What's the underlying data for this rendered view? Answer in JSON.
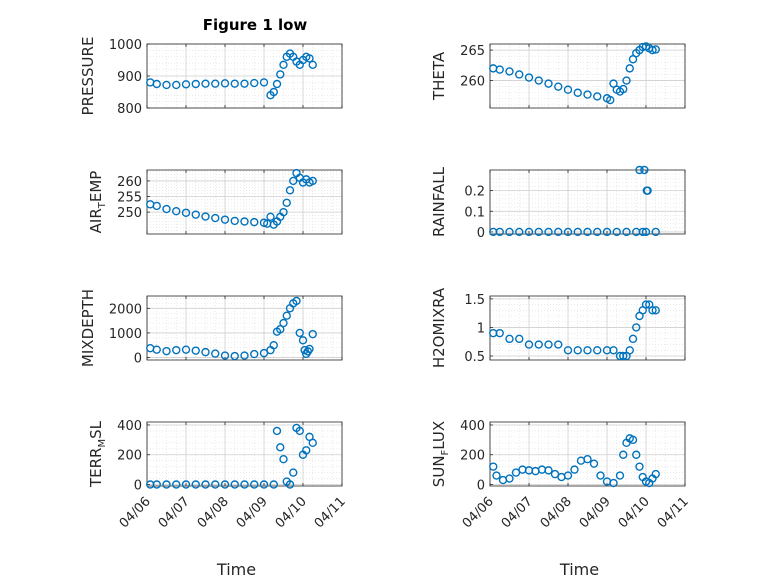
{
  "figure_title": "Figure 1 low",
  "colors": {
    "marker": "#0072BD",
    "axis": "#262626",
    "grid": "#dcdcdc"
  },
  "chart_data": [
    {
      "type": "scatter",
      "ylabel": "PRESSURE",
      "ylim": [
        800,
        1000
      ],
      "yticks": [
        "1000",
        "900",
        "800"
      ],
      "ytick_values": [
        1000,
        900,
        800
      ],
      "x": [
        "04/06 02:00",
        "04/06 06:00",
        "04/06 12:00",
        "04/06 18:00",
        "04/07 00:00",
        "04/07 06:00",
        "04/07 12:00",
        "04/07 18:00",
        "04/08 00:00",
        "04/08 06:00",
        "04/08 12:00",
        "04/08 18:00",
        "04/09 00:00",
        "04/09 04:00",
        "04/09 06:00",
        "04/09 08:00",
        "04/09 10:00",
        "04/09 12:00",
        "04/09 14:00",
        "04/09 16:00",
        "04/09 18:00",
        "04/09 20:00",
        "04/09 22:00",
        "04/10 00:00",
        "04/10 02:00",
        "04/10 04:00",
        "04/10 06:00"
      ],
      "y": [
        880,
        875,
        872,
        872,
        874,
        875,
        876,
        876,
        877,
        876,
        876,
        878,
        880,
        840,
        850,
        875,
        905,
        935,
        960,
        970,
        960,
        945,
        935,
        950,
        960,
        955,
        935
      ]
    },
    {
      "type": "scatter",
      "ylabel": "THETA",
      "ylim": [
        255.5,
        266
      ],
      "yticks": [
        "265",
        "260"
      ],
      "ytick_values": [
        265,
        260
      ],
      "x": [
        "04/06 02:00",
        "04/06 06:00",
        "04/06 12:00",
        "04/06 18:00",
        "04/07 00:00",
        "04/07 06:00",
        "04/07 12:00",
        "04/07 18:00",
        "04/08 00:00",
        "04/08 06:00",
        "04/08 12:00",
        "04/08 18:00",
        "04/09 00:00",
        "04/09 02:00",
        "04/09 04:00",
        "04/09 06:00",
        "04/09 08:00",
        "04/09 10:00",
        "04/09 12:00",
        "04/09 14:00",
        "04/09 16:00",
        "04/09 18:00",
        "04/09 20:00",
        "04/09 22:00",
        "04/10 00:00",
        "04/10 02:00",
        "04/10 04:00",
        "04/10 06:00"
      ],
      "y": [
        262,
        261.8,
        261.5,
        261,
        260.5,
        260,
        259.5,
        259,
        258.5,
        258,
        257.7,
        257.4,
        257.1,
        256.8,
        259.5,
        258.5,
        258.2,
        258.6,
        260,
        262,
        263.5,
        264.5,
        265,
        265.5,
        265.6,
        265.3,
        265,
        265.1
      ]
    },
    {
      "type": "scatter",
      "ylabel": "AIR_TEMP",
      "ylim": [
        243,
        263.5
      ],
      "yticks": [
        "260",
        "255",
        "250"
      ],
      "ytick_values": [
        260,
        255,
        250
      ],
      "x": [
        "04/06 02:00",
        "04/06 06:00",
        "04/06 12:00",
        "04/06 18:00",
        "04/07 00:00",
        "04/07 06:00",
        "04/07 12:00",
        "04/07 18:00",
        "04/08 00:00",
        "04/08 06:00",
        "04/08 12:00",
        "04/08 18:00",
        "04/09 00:00",
        "04/09 02:00",
        "04/09 04:00",
        "04/09 06:00",
        "04/09 08:00",
        "04/09 10:00",
        "04/09 12:00",
        "04/09 14:00",
        "04/09 16:00",
        "04/09 18:00",
        "04/09 20:00",
        "04/09 22:00",
        "04/10 00:00",
        "04/10 02:00",
        "04/10 04:00",
        "04/10 06:00"
      ],
      "y": [
        252.5,
        252,
        251,
        250.3,
        249.8,
        249.2,
        248.6,
        248.1,
        247.6,
        247.2,
        247,
        246.8,
        246.6,
        246.3,
        248.5,
        246,
        247,
        248.5,
        250,
        253,
        257,
        260,
        262.5,
        261,
        259.5,
        260.5,
        259.5,
        260
      ]
    },
    {
      "type": "scatter",
      "ylabel": "RAINFALL",
      "ylim": [
        -0.01,
        0.3
      ],
      "yticks": [
        "0.2",
        "0.1",
        "0"
      ],
      "ytick_values": [
        0.2,
        0.1,
        0
      ],
      "x": [
        "04/06 02:00",
        "04/06 06:00",
        "04/06 12:00",
        "04/06 18:00",
        "04/07 00:00",
        "04/07 06:00",
        "04/07 12:00",
        "04/07 18:00",
        "04/08 00:00",
        "04/08 06:00",
        "04/08 12:00",
        "04/08 18:00",
        "04/09 00:00",
        "04/09 06:00",
        "04/09 12:00",
        "04/09 18:00",
        "04/09 22:00",
        "04/10 00:00",
        "04/10 06:00",
        "04/09 20:00",
        "04/09 23:00",
        "04/10 00:30",
        "04/10 01:00"
      ],
      "y": [
        0,
        0,
        0,
        0,
        0,
        0,
        0,
        0,
        0,
        0,
        0,
        0,
        0,
        0,
        0,
        0,
        0,
        0,
        0,
        0.3,
        0.3,
        0.2,
        0.2
      ]
    },
    {
      "type": "scatter",
      "ylabel": "MIXDEPTH",
      "ylim": [
        -100,
        2500
      ],
      "yticks": [
        "2000",
        "1000",
        "0"
      ],
      "ytick_values": [
        2000,
        1000,
        0
      ],
      "x": [
        "04/06 02:00",
        "04/06 06:00",
        "04/06 12:00",
        "04/06 18:00",
        "04/07 00:00",
        "04/07 06:00",
        "04/07 12:00",
        "04/07 18:00",
        "04/08 00:00",
        "04/08 06:00",
        "04/08 12:00",
        "04/08 18:00",
        "04/09 00:00",
        "04/09 04:00",
        "04/09 06:00",
        "04/09 08:00",
        "04/09 10:00",
        "04/09 12:00",
        "04/09 14:00",
        "04/09 16:00",
        "04/09 18:00",
        "04/09 20:00",
        "04/09 22:00",
        "04/10 00:00",
        "04/10 01:00",
        "04/10 02:00",
        "04/10 03:00",
        "04/10 04:00",
        "04/10 06:00"
      ],
      "y": [
        380,
        320,
        260,
        300,
        320,
        280,
        220,
        160,
        80,
        60,
        80,
        140,
        180,
        300,
        500,
        1050,
        1150,
        1400,
        1700,
        2000,
        2200,
        2300,
        1000,
        700,
        300,
        150,
        250,
        350,
        950
      ]
    },
    {
      "type": "scatter",
      "ylabel": "H2OMIXRA",
      "ylim": [
        0.43,
        1.55
      ],
      "yticks": [
        "1.5",
        "1",
        "0.5"
      ],
      "ytick_values": [
        1.5,
        1,
        0.5
      ],
      "x": [
        "04/06 02:00",
        "04/06 06:00",
        "04/06 12:00",
        "04/06 18:00",
        "04/07 00:00",
        "04/07 06:00",
        "04/07 12:00",
        "04/07 18:00",
        "04/08 00:00",
        "04/08 06:00",
        "04/08 12:00",
        "04/08 18:00",
        "04/09 00:00",
        "04/09 04:00",
        "04/09 08:00",
        "04/09 10:00",
        "04/09 12:00",
        "04/09 14:00",
        "04/09 16:00",
        "04/09 18:00",
        "04/09 20:00",
        "04/09 22:00",
        "04/10 00:00",
        "04/10 02:00",
        "04/10 04:00",
        "04/10 06:00"
      ],
      "y": [
        0.9,
        0.9,
        0.8,
        0.8,
        0.7,
        0.7,
        0.7,
        0.7,
        0.6,
        0.6,
        0.6,
        0.6,
        0.6,
        0.6,
        0.5,
        0.5,
        0.5,
        0.6,
        0.8,
        1.0,
        1.2,
        1.3,
        1.4,
        1.4,
        1.3,
        1.3
      ]
    },
    {
      "type": "scatter",
      "ylabel": "TERR_MSL",
      "ylim": [
        -10,
        420
      ],
      "yticks": [
        "400",
        "200",
        "0"
      ],
      "ytick_values": [
        400,
        200,
        0
      ],
      "x": [
        "04/06 02:00",
        "04/06 06:00",
        "04/06 12:00",
        "04/06 18:00",
        "04/07 00:00",
        "04/07 06:00",
        "04/07 12:00",
        "04/07 18:00",
        "04/08 00:00",
        "04/08 06:00",
        "04/08 12:00",
        "04/08 18:00",
        "04/09 00:00",
        "04/09 06:00",
        "04/09 08:00",
        "04/09 10:00",
        "04/09 12:00",
        "04/09 14:00",
        "04/09 16:00",
        "04/09 18:00",
        "04/09 20:00",
        "04/09 22:00",
        "04/10 00:00",
        "04/10 02:00",
        "04/10 04:00",
        "04/10 06:00"
      ],
      "y": [
        0,
        0,
        0,
        0,
        0,
        0,
        0,
        0,
        0,
        0,
        0,
        0,
        0,
        0,
        360,
        250,
        170,
        20,
        0,
        80,
        380,
        360,
        200,
        230,
        320,
        280
      ]
    },
    {
      "type": "scatter",
      "ylabel": "SUN_FLUX",
      "ylim": [
        -10,
        420
      ],
      "yticks": [
        "400",
        "200",
        "0"
      ],
      "ytick_values": [
        400,
        200,
        0
      ],
      "x": [
        "04/06 02:00",
        "04/06 04:00",
        "04/06 08:00",
        "04/06 12:00",
        "04/06 16:00",
        "04/06 20:00",
        "04/07 00:00",
        "04/07 04:00",
        "04/07 08:00",
        "04/07 12:00",
        "04/07 16:00",
        "04/07 20:00",
        "04/08 00:00",
        "04/08 04:00",
        "04/08 08:00",
        "04/08 12:00",
        "04/08 16:00",
        "04/08 20:00",
        "04/09 00:00",
        "04/09 04:00",
        "04/09 08:00",
        "04/09 10:00",
        "04/09 12:00",
        "04/09 14:00",
        "04/09 16:00",
        "04/09 18:00",
        "04/09 20:00",
        "04/09 22:00",
        "04/10 00:00",
        "04/10 02:00",
        "04/10 04:00",
        "04/10 06:00"
      ],
      "y": [
        120,
        60,
        30,
        40,
        80,
        100,
        95,
        90,
        100,
        95,
        70,
        50,
        60,
        100,
        160,
        170,
        140,
        60,
        20,
        10,
        60,
        200,
        280,
        310,
        300,
        200,
        120,
        50,
        20,
        10,
        40,
        70
      ]
    }
  ],
  "x_axis": {
    "range": [
      "04/06 00:00",
      "04/11 00:00"
    ],
    "ticks": [
      "04/06",
      "04/07",
      "04/08",
      "04/09",
      "04/10",
      "04/11"
    ],
    "label": "Time"
  }
}
